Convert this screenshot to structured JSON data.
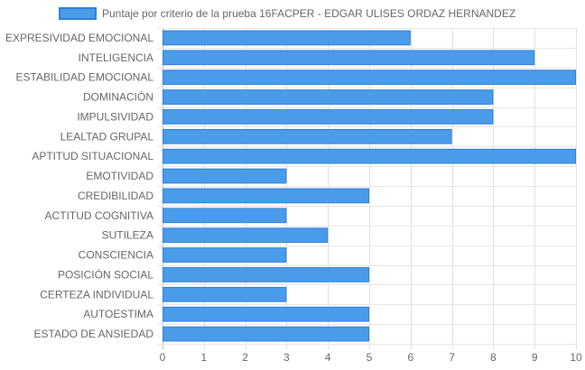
{
  "chart_data": {
    "type": "bar",
    "orientation": "horizontal",
    "title": "",
    "xlabel": "",
    "ylabel": "",
    "xlim": [
      0,
      10
    ],
    "x_ticks": [
      "0",
      "1",
      "2",
      "3",
      "4",
      "5",
      "6",
      "7",
      "8",
      "9",
      "10"
    ],
    "grid": true,
    "legend_position": "top",
    "categories": [
      "EXPRESIVIDAD EMOCIONAL",
      "INTELIGENCIA",
      "ESTABILIDAD EMOCIONAL",
      "DOMINACIÓN",
      "IMPULSIVIDAD",
      "LEALTAD GRUPAL",
      "APTITUD SITUACIONAL",
      "EMOTIVIDAD",
      "CREDIBILIDAD",
      "ACTITUD COGNITIVA",
      "SUTILEZA",
      "CONSCIENCIA",
      "POSICIÓN SOCIAL",
      "CERTEZA INDIVIDUAL",
      "AUTOESTIMA",
      "ESTADO DE ANSIEDAD"
    ],
    "series": [
      {
        "name": "Puntaje por criterio de la prueba 16FACPER - EDGAR ULISES ORDAZ HERNANDEZ",
        "color": "#4A9BEA",
        "border_color": "#2F80D8",
        "values": [
          6,
          9,
          10,
          8,
          8,
          7,
          10,
          3,
          5,
          3,
          4,
          3,
          5,
          3,
          5,
          5
        ]
      }
    ]
  }
}
